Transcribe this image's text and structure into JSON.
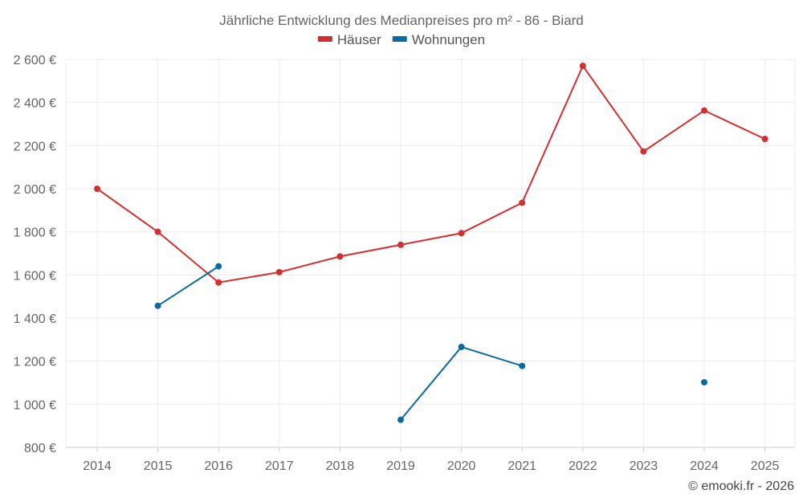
{
  "chart_data": {
    "type": "line",
    "title": "Jährliche Entwicklung des Medianpreises pro m² - 86 - Biard",
    "categories": [
      "2014",
      "2015",
      "2016",
      "2017",
      "2018",
      "2019",
      "2020",
      "2021",
      "2022",
      "2023",
      "2024",
      "2025"
    ],
    "ylim": [
      800,
      2600
    ],
    "yticks": [
      800,
      1000,
      1200,
      1400,
      1600,
      1800,
      2000,
      2200,
      2400,
      2600
    ],
    "ytick_labels": [
      "800 €",
      "1 000 €",
      "1 200 €",
      "1 400 €",
      "1 600 €",
      "1 800 €",
      "2 000 €",
      "2 200 €",
      "2 400 €",
      "2 600 €"
    ],
    "legend_position": "top-center",
    "series": [
      {
        "name": "Häuser",
        "color": "#d32f2f",
        "values": [
          2000,
          1800,
          1565,
          1613,
          1686,
          1740,
          1794,
          1935,
          2570,
          2173,
          2363,
          2231
        ]
      },
      {
        "name": "Wohnungen",
        "color": "#0a6aa1",
        "values": [
          null,
          1457,
          1640,
          null,
          null,
          928,
          1266,
          1178,
          null,
          null,
          1102,
          null
        ]
      }
    ],
    "credit": "© emooki.fr - 2026"
  }
}
